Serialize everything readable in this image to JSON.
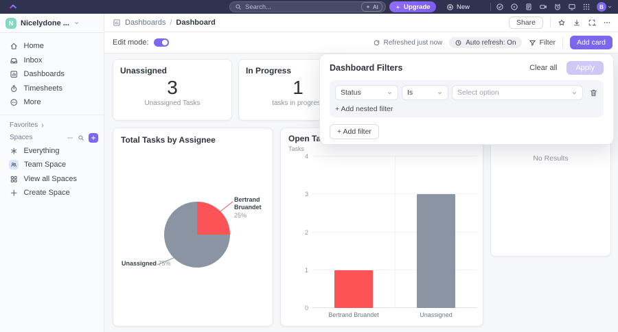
{
  "topbar": {
    "search_placeholder": "Search...",
    "ai_label": "AI",
    "upgrade_label": "Upgrade",
    "new_label": "New",
    "avatar_initial": "B"
  },
  "header": {
    "workspace_name": "Nicelydone ...",
    "workspace_initial": "N",
    "breadcrumb_section": "Dashboards",
    "breadcrumb_separator": "/",
    "breadcrumb_page": "Dashboard",
    "share_label": "Share"
  },
  "sidebar": {
    "items": [
      {
        "label": "Home"
      },
      {
        "label": "Inbox"
      },
      {
        "label": "Dashboards"
      },
      {
        "label": "Timesheets"
      },
      {
        "label": "More"
      }
    ],
    "favorites_label": "Favorites",
    "spaces_label": "Spaces",
    "space_items": [
      {
        "label": "Everything"
      },
      {
        "label": "Team Space"
      },
      {
        "label": "View all Spaces"
      },
      {
        "label": "Create Space"
      }
    ]
  },
  "toolbar": {
    "edit_mode_label": "Edit mode:",
    "refreshed_label": "Refreshed just now",
    "auto_refresh_label": "Auto refresh: On",
    "filter_label": "Filter",
    "add_card_label": "Add card"
  },
  "filters_panel": {
    "title": "Dashboard Filters",
    "clear_all_label": "Clear all",
    "apply_label": "Apply",
    "field_value": "Status",
    "operator_value": "Is",
    "value_placeholder": "Select option",
    "add_nested_label": "+ Add nested filter",
    "add_filter_label": "+ Add filter"
  },
  "cards": {
    "unassigned": {
      "title": "Unassigned",
      "value": "3",
      "subtitle": "Unassigned Tasks"
    },
    "in_progress": {
      "title": "In Progress",
      "value": "1",
      "subtitle": "tasks in progress"
    },
    "no_results": {
      "text": "No Results"
    }
  },
  "chart_data": [
    {
      "type": "pie",
      "title": "Total Tasks by Assignee",
      "slices": [
        {
          "label": "Bertrand Bruandet",
          "value": 1,
          "percent": 25,
          "display": "25%",
          "color": "#fb5356"
        },
        {
          "label": "Unassigned",
          "value": 3,
          "percent": 75,
          "display": "75%",
          "color": "#8a94a3"
        }
      ],
      "legend_position": "callout-labels",
      "start_angle": "top-clockwise"
    },
    {
      "type": "bar",
      "title": "Open Tasks",
      "ylabel": "Tasks",
      "xlabel": "",
      "categories": [
        "Bertrand Bruandet",
        "Unassigned"
      ],
      "values": [
        1,
        3
      ],
      "colors": [
        "#fb5356",
        "#8a94a3"
      ],
      "ylim": [
        0,
        4
      ],
      "yticks": [
        0,
        1,
        2,
        3,
        4
      ],
      "grid": true,
      "legend_position": "none"
    }
  ],
  "colors": {
    "accent": "#7b68ee",
    "topbar_bg": "#2f3350",
    "chart_red": "#fb5356",
    "chart_gray": "#8a94a3"
  }
}
